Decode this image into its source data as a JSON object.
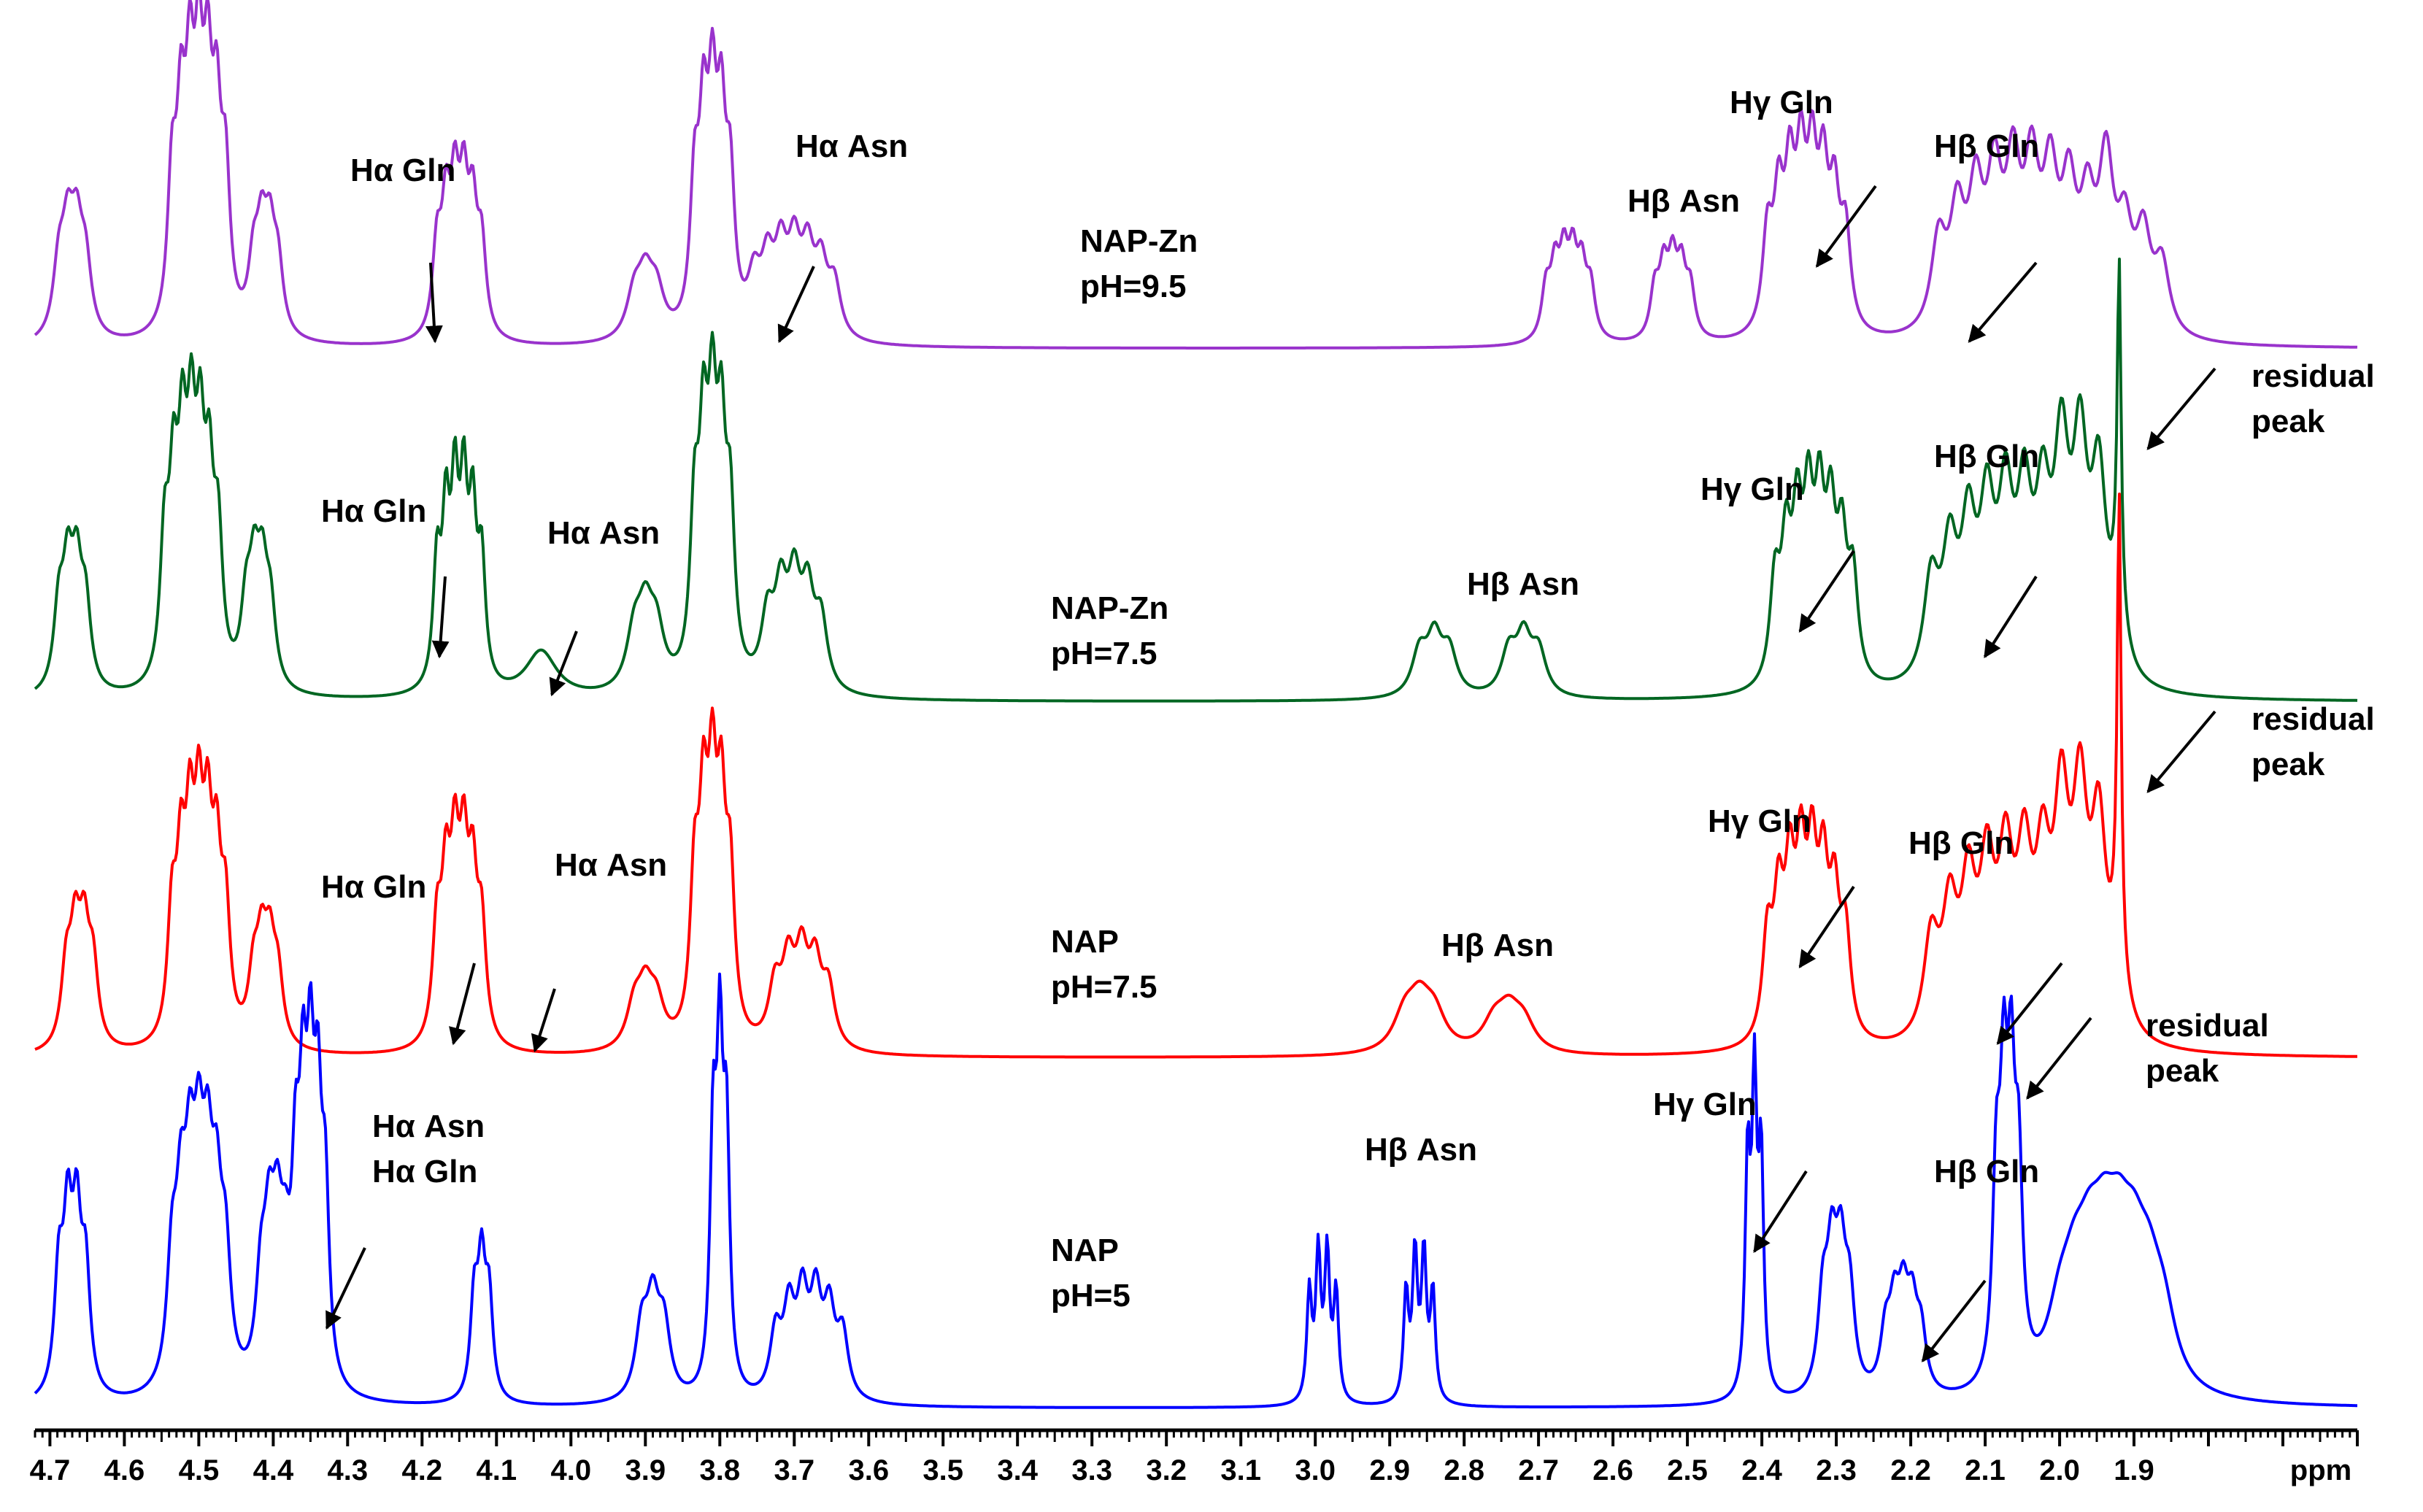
{
  "chart_data": {
    "type": "line",
    "title": "",
    "xlabel": "ppm",
    "ylabel": "",
    "xlim": [
      4.72,
      1.6
    ],
    "x_ticks": [
      "4.7",
      "4.6",
      "4.5",
      "4.4",
      "4.3",
      "4.2",
      "4.1",
      "4.0",
      "3.9",
      "3.8",
      "3.7",
      "3.6",
      "3.5",
      "3.4",
      "3.3",
      "3.2",
      "3.1",
      "3.0",
      "2.9",
      "2.8",
      "2.7",
      "2.6",
      "2.5",
      "2.4",
      "2.3",
      "2.2",
      "2.1",
      "2.0",
      "1.9"
    ],
    "axis_unit_label": "ppm",
    "series": [
      {
        "name": "NAP-Zn pH=9.5",
        "label_lines": [
          "NAP-Zn",
          "pH=9.5"
        ],
        "color": "#9933cc",
        "peaks": [
          {
            "ppm": 4.67,
            "h": 0.38,
            "w": 0.009,
            "split": 4,
            "j": 0.012
          },
          {
            "ppm": 4.5,
            "h": 0.88,
            "w": 0.007,
            "split": 7,
            "j": 0.012
          },
          {
            "ppm": 4.41,
            "h": 0.36,
            "w": 0.008,
            "split": 4,
            "j": 0.011
          },
          {
            "ppm": 4.15,
            "h": 0.52,
            "w": 0.007,
            "split": 6,
            "j": 0.012
          },
          {
            "ppm": 3.9,
            "h": 0.22,
            "w": 0.012,
            "split": 3,
            "j": 0.015
          },
          {
            "ppm": 3.81,
            "h": 0.8,
            "w": 0.007,
            "split": 5,
            "j": 0.012
          },
          {
            "ppm": 3.7,
            "h": 0.32,
            "w": 0.01,
            "split": 7,
            "j": 0.018
          },
          {
            "ppm": 2.66,
            "h": 0.3,
            "w": 0.007,
            "split": 6,
            "j": 0.012
          },
          {
            "ppm": 2.52,
            "h": 0.28,
            "w": 0.007,
            "split": 5,
            "j": 0.012
          },
          {
            "ppm": 2.34,
            "h": 0.6,
            "w": 0.008,
            "split": 8,
            "j": 0.015
          },
          {
            "ppm": 2.05,
            "h": 0.58,
            "w": 0.012,
            "split": 10,
            "j": 0.025
          },
          {
            "ppm": 1.9,
            "h": 0.38,
            "w": 0.012,
            "split": 4,
            "j": 0.025
          }
        ]
      },
      {
        "name": "NAP-Zn pH=7.5",
        "label_lines": [
          "NAP-Zn",
          "pH=7.5"
        ],
        "color": "#006622",
        "peaks": [
          {
            "ppm": 4.67,
            "h": 0.48,
            "w": 0.008,
            "split": 4,
            "j": 0.012
          },
          {
            "ppm": 4.51,
            "h": 0.9,
            "w": 0.007,
            "split": 7,
            "j": 0.012
          },
          {
            "ppm": 4.42,
            "h": 0.44,
            "w": 0.008,
            "split": 4,
            "j": 0.011
          },
          {
            "ppm": 4.15,
            "h": 0.78,
            "w": 0.006,
            "split": 6,
            "j": 0.012
          },
          {
            "ppm": 4.04,
            "h": 0.2,
            "w": 0.025,
            "split": 1,
            "j": 0.0
          },
          {
            "ppm": 3.9,
            "h": 0.3,
            "w": 0.012,
            "split": 3,
            "j": 0.015
          },
          {
            "ppm": 3.81,
            "h": 1.0,
            "w": 0.007,
            "split": 5,
            "j": 0.012
          },
          {
            "ppm": 3.7,
            "h": 0.42,
            "w": 0.01,
            "split": 5,
            "j": 0.018
          },
          {
            "ppm": 2.84,
            "h": 0.24,
            "w": 0.012,
            "split": 3,
            "j": 0.02
          },
          {
            "ppm": 2.72,
            "h": 0.24,
            "w": 0.012,
            "split": 3,
            "j": 0.02
          },
          {
            "ppm": 2.33,
            "h": 0.68,
            "w": 0.008,
            "split": 8,
            "j": 0.015
          },
          {
            "ppm": 2.06,
            "h": 0.7,
            "w": 0.012,
            "split": 10,
            "j": 0.025
          },
          {
            "ppm": 1.92,
            "h": 1.45,
            "w": 0.003,
            "split": 1,
            "j": 0.0
          },
          {
            "ppm": 1.96,
            "h": 0.4,
            "w": 0.012,
            "split": 4,
            "j": 0.025
          }
        ]
      },
      {
        "name": "NAP pH=7.5",
        "label_lines": [
          "NAP",
          "pH=7.5"
        ],
        "color": "#ff0000",
        "peaks": [
          {
            "ppm": 4.66,
            "h": 0.48,
            "w": 0.008,
            "split": 4,
            "j": 0.012
          },
          {
            "ppm": 4.5,
            "h": 0.85,
            "w": 0.007,
            "split": 7,
            "j": 0.012
          },
          {
            "ppm": 4.41,
            "h": 0.4,
            "w": 0.008,
            "split": 4,
            "j": 0.011
          },
          {
            "ppm": 4.15,
            "h": 0.75,
            "w": 0.007,
            "split": 6,
            "j": 0.012
          },
          {
            "ppm": 3.9,
            "h": 0.24,
            "w": 0.012,
            "split": 3,
            "j": 0.015
          },
          {
            "ppm": 3.81,
            "h": 1.0,
            "w": 0.007,
            "split": 5,
            "j": 0.012
          },
          {
            "ppm": 3.69,
            "h": 0.38,
            "w": 0.01,
            "split": 5,
            "j": 0.018
          },
          {
            "ppm": 2.86,
            "h": 0.2,
            "w": 0.018,
            "split": 3,
            "j": 0.02
          },
          {
            "ppm": 2.74,
            "h": 0.16,
            "w": 0.018,
            "split": 3,
            "j": 0.02
          },
          {
            "ppm": 2.34,
            "h": 0.72,
            "w": 0.008,
            "split": 8,
            "j": 0.015
          },
          {
            "ppm": 2.06,
            "h": 0.72,
            "w": 0.012,
            "split": 10,
            "j": 0.025
          },
          {
            "ppm": 1.92,
            "h": 2.05,
            "w": 0.003,
            "split": 1,
            "j": 0.0
          },
          {
            "ppm": 1.96,
            "h": 0.46,
            "w": 0.012,
            "split": 4,
            "j": 0.025
          }
        ]
      },
      {
        "name": "NAP pH=5",
        "label_lines": [
          "NAP",
          "pH=5"
        ],
        "color": "#0000ff",
        "peaks": [
          {
            "ppm": 4.67,
            "h": 0.52,
            "w": 0.007,
            "split": 4,
            "j": 0.012
          },
          {
            "ppm": 4.5,
            "h": 0.58,
            "w": 0.008,
            "split": 7,
            "j": 0.012
          },
          {
            "ppm": 4.4,
            "h": 0.42,
            "w": 0.008,
            "split": 4,
            "j": 0.011
          },
          {
            "ppm": 4.35,
            "h": 0.82,
            "w": 0.006,
            "split": 5,
            "j": 0.01
          },
          {
            "ppm": 4.12,
            "h": 0.4,
            "w": 0.006,
            "split": 3,
            "j": 0.01
          },
          {
            "ppm": 3.89,
            "h": 0.28,
            "w": 0.01,
            "split": 3,
            "j": 0.015
          },
          {
            "ppm": 3.8,
            "h": 1.0,
            "w": 0.005,
            "split": 3,
            "j": 0.009
          },
          {
            "ppm": 3.68,
            "h": 0.3,
            "w": 0.009,
            "split": 6,
            "j": 0.018
          },
          {
            "ppm": 2.99,
            "h": 0.48,
            "w": 0.004,
            "split": 4,
            "j": 0.012
          },
          {
            "ppm": 2.86,
            "h": 0.48,
            "w": 0.004,
            "split": 4,
            "j": 0.012
          },
          {
            "ppm": 2.41,
            "h": 0.94,
            "w": 0.004,
            "split": 3,
            "j": 0.009
          },
          {
            "ppm": 2.3,
            "h": 0.4,
            "w": 0.008,
            "split": 4,
            "j": 0.012
          },
          {
            "ppm": 2.21,
            "h": 0.26,
            "w": 0.008,
            "split": 5,
            "j": 0.012
          },
          {
            "ppm": 2.07,
            "h": 0.85,
            "w": 0.006,
            "split": 4,
            "j": 0.01
          },
          {
            "ppm": 1.93,
            "h": 0.3,
            "w": 0.02,
            "split": 8,
            "j": 0.02
          }
        ]
      }
    ],
    "annotations": [
      {
        "series": 0,
        "lines": [
          "Hα Gln"
        ],
        "peak_ppm": 4.18
      },
      {
        "series": 0,
        "lines": [
          "Hα Asn"
        ],
        "peak_ppm": 3.74
      },
      {
        "series": 0,
        "lines": [
          "Hβ Asn"
        ],
        "peak_ppm": null
      },
      {
        "series": 0,
        "lines": [
          "Hγ Gln"
        ],
        "peak_ppm": 2.36
      },
      {
        "series": 0,
        "lines": [
          "Hβ Gln"
        ],
        "peak_ppm": 2.16
      },
      {
        "series": 1,
        "lines": [
          "Hα Gln"
        ],
        "peak_ppm": 4.18
      },
      {
        "series": 1,
        "lines": [
          "Hα Asn"
        ],
        "peak_ppm": 4.04
      },
      {
        "series": 1,
        "lines": [
          "Hβ Asn"
        ],
        "peak_ppm": null
      },
      {
        "series": 1,
        "lines": [
          "Hγ Gln"
        ],
        "peak_ppm": 2.38
      },
      {
        "series": 1,
        "lines": [
          "Hβ Gln"
        ],
        "peak_ppm": 2.13
      },
      {
        "series": 1,
        "lines": [
          "residual",
          "peak"
        ],
        "peak_ppm": 1.92
      },
      {
        "series": 2,
        "lines": [
          "Hα Gln"
        ],
        "peak_ppm": 4.17
      },
      {
        "series": 2,
        "lines": [
          "Hα Asn"
        ],
        "peak_ppm": 4.06
      },
      {
        "series": 2,
        "lines": [
          "Hβ Asn"
        ],
        "peak_ppm": null
      },
      {
        "series": 2,
        "lines": [
          "Hγ Gln"
        ],
        "peak_ppm": 2.38
      },
      {
        "series": 2,
        "lines": [
          "Hβ Gln"
        ],
        "peak_ppm": 2.12
      },
      {
        "series": 2,
        "lines": [
          "residual",
          "peak"
        ],
        "peak_ppm": 1.92
      },
      {
        "series": 3,
        "lines": [
          "Hα Asn",
          "Hα Gln"
        ],
        "peak_ppm": 4.35
      },
      {
        "series": 3,
        "lines": [
          "Hβ Asn"
        ],
        "peak_ppm": null
      },
      {
        "series": 3,
        "lines": [
          "Hγ Gln"
        ],
        "peak_ppm": 2.44
      },
      {
        "series": 3,
        "lines": [
          "Hβ Gln"
        ],
        "peak_ppm": 2.22
      },
      {
        "series": 3,
        "lines": [
          "residual",
          "peak"
        ],
        "peak_ppm": 2.08
      }
    ]
  }
}
